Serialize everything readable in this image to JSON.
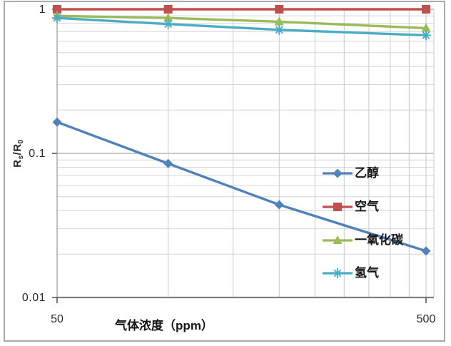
{
  "chart_data": {
    "type": "line",
    "title": "",
    "xlabel": "气体浓度（ppm）",
    "ylabel": "Rs/R0",
    "ylabel_parts": {
      "base1": "R",
      "sub1": "s",
      "divider": "/",
      "base2": "R",
      "sub2": "0"
    },
    "x_scale": "log",
    "y_scale": "log",
    "xlim": [
      50,
      500
    ],
    "ylim": [
      0.01,
      1
    ],
    "grid": true,
    "x": [
      50,
      100,
      200,
      500
    ],
    "x_gridlines": [
      100,
      150,
      200,
      250,
      300,
      350,
      400,
      450,
      500
    ],
    "x_tick_labels": [
      {
        "value": 50,
        "label": "50"
      },
      {
        "value": 500,
        "label": "500"
      }
    ],
    "y_tick_labels": [
      {
        "value": 1,
        "label": "1"
      },
      {
        "value": 0.1,
        "label": "0.1"
      },
      {
        "value": 0.01,
        "label": "0.01"
      }
    ],
    "legend_position": "inside-right",
    "series": [
      {
        "name": "乙醇",
        "color": "#4F81BD",
        "marker": "diamond",
        "values": [
          0.165,
          0.085,
          0.044,
          0.021
        ]
      },
      {
        "name": "空气",
        "color": "#C0504D",
        "marker": "square",
        "values": [
          1.0,
          1.0,
          1.0,
          1.0
        ]
      },
      {
        "name": "一氧化碳",
        "color": "#9BBB59",
        "marker": "triangle",
        "values": [
          0.9,
          0.87,
          0.82,
          0.74
        ]
      },
      {
        "name": "氢气",
        "color": "#4BACC6",
        "marker": "asterisk",
        "values": [
          0.87,
          0.79,
          0.72,
          0.66
        ]
      }
    ],
    "grid_colors": {
      "minor": "#d6d6d6",
      "vertical": "#c9c9cd",
      "major": "#a8a8a8",
      "axis": "#7f7f7f",
      "tick": "#595959"
    }
  }
}
